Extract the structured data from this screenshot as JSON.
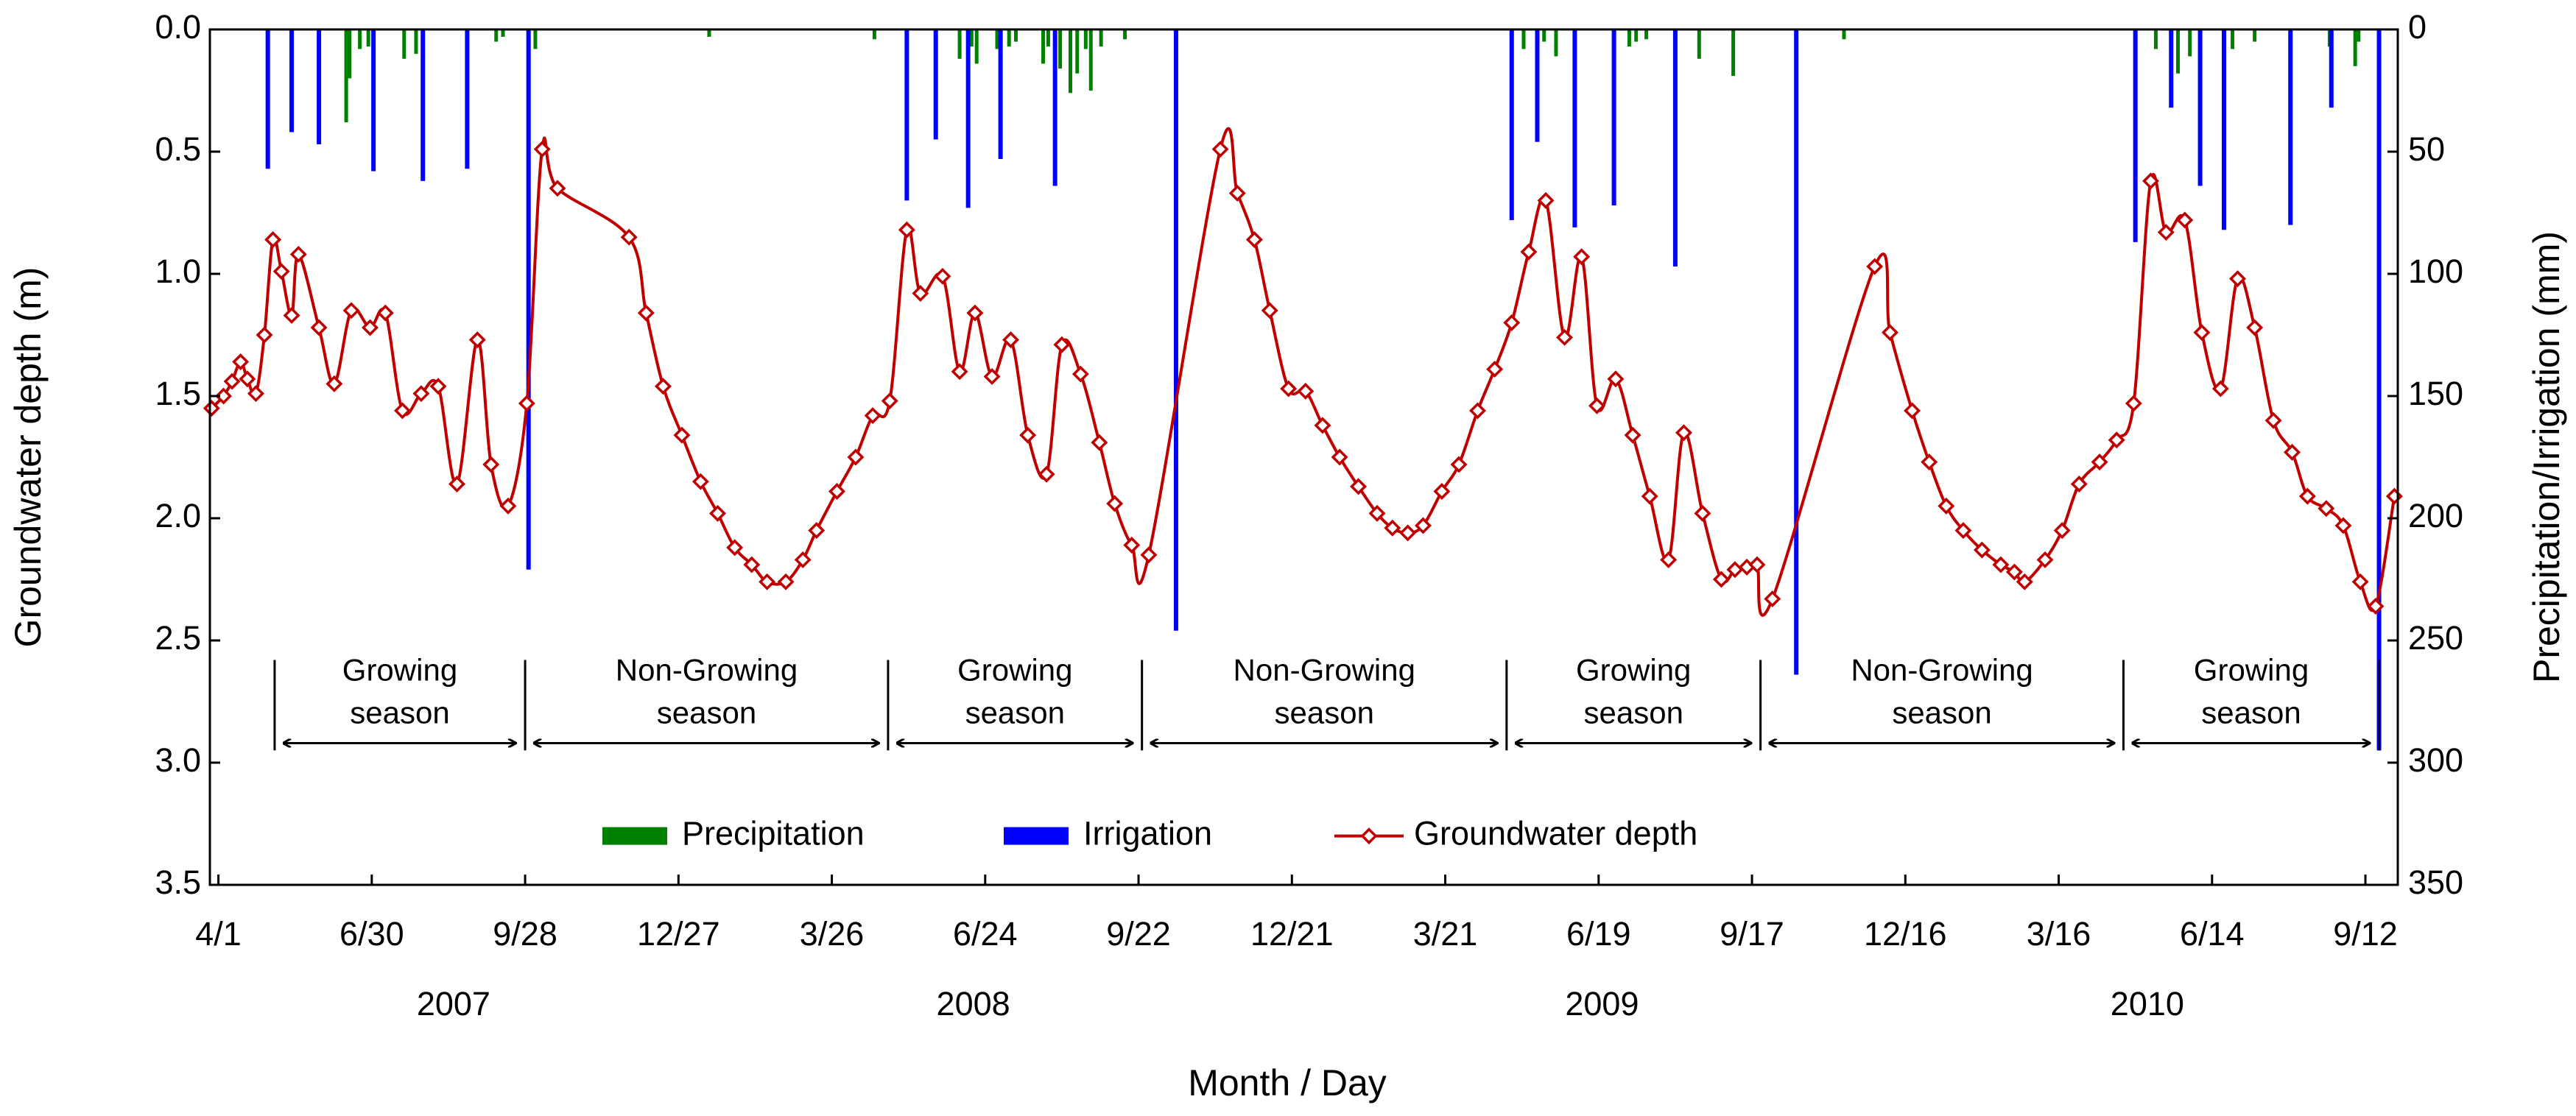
{
  "chart_data": {
    "type": "line",
    "xlabel": "Month  / Day",
    "ylabel": "Groundwater depth (m)",
    "y2label": "Precipitation/Irrigation (mm)",
    "xlim": [
      -5,
      1279
    ],
    "xticks": [
      {
        "value": 0,
        "label": "4/1"
      },
      {
        "value": 90,
        "label": "6/30"
      },
      {
        "value": 180,
        "label": "9/28"
      },
      {
        "value": 270,
        "label": "12/27"
      },
      {
        "value": 360,
        "label": "3/26"
      },
      {
        "value": 450,
        "label": "6/24"
      },
      {
        "value": 540,
        "label": "9/22"
      },
      {
        "value": 630,
        "label": "12/21"
      },
      {
        "value": 720,
        "label": "3/21"
      },
      {
        "value": 810,
        "label": "6/19"
      },
      {
        "value": 900,
        "label": "9/17"
      },
      {
        "value": 990,
        "label": "12/16"
      },
      {
        "value": 1080,
        "label": "3/16"
      },
      {
        "value": 1170,
        "label": "6/14"
      },
      {
        "value": 1260,
        "label": "9/12"
      }
    ],
    "year_labels": [
      {
        "text": "2007",
        "x": 138
      },
      {
        "text": "2008",
        "x": 443
      },
      {
        "text": "2009",
        "x": 812
      },
      {
        "text": "2010",
        "x": 1132
      }
    ],
    "ylim": [
      0,
      3.5
    ],
    "yticks": [
      {
        "value": 0,
        "label": "0.0"
      },
      0.5,
      {
        "value": 1,
        "label": "1.0"
      },
      1.5,
      {
        "value": 2,
        "label": "2.0"
      },
      2.5,
      {
        "value": 3,
        "label": "3.0"
      },
      3.5
    ],
    "y2lim": [
      0,
      350
    ],
    "y2ticks": [
      0,
      50,
      100,
      150,
      200,
      250,
      300,
      350
    ],
    "y_inverted": true,
    "legend": "lower center",
    "series": [
      {
        "name": "Precipitation",
        "type": "bar",
        "axis": "y2",
        "color": "#008000",
        "x": [
          75,
          77,
          83,
          88,
          109,
          116,
          163,
          167,
          186,
          288,
          385,
          435,
          442,
          445,
          457,
          464,
          468,
          484,
          487,
          494,
          500,
          504,
          509,
          512,
          518,
          532,
          766,
          778,
          785,
          828,
          832,
          838,
          869,
          889,
          954,
          1137,
          1150,
          1157,
          1182,
          1195,
          1239,
          1254,
          1256
        ],
        "values": [
          38,
          20,
          8,
          7,
          12,
          10,
          5,
          3,
          8,
          3,
          4,
          12,
          7,
          14,
          8,
          7,
          5,
          14,
          7,
          16,
          26,
          18,
          8,
          25,
          7,
          4,
          8,
          5,
          11,
          7,
          5,
          4,
          12,
          19,
          4,
          8,
          18,
          11,
          8,
          5,
          7,
          15,
          5
        ]
      },
      {
        "name": "Irrigation",
        "type": "bar",
        "axis": "y2",
        "color": "#0000ff",
        "x": [
          29,
          43,
          59,
          91,
          120,
          146,
          182,
          404,
          421,
          440,
          459,
          491,
          562,
          759,
          774,
          796,
          819,
          855,
          926,
          1125,
          1146,
          1163,
          1177,
          1216,
          1240,
          1268
        ],
        "values": [
          57,
          42,
          47,
          58,
          62,
          57,
          221,
          70,
          45,
          73,
          53,
          64,
          246,
          78,
          46,
          81,
          72,
          97,
          264,
          87,
          32,
          64,
          82,
          80,
          32,
          295
        ]
      },
      {
        "name": "Groundwater depth",
        "type": "line",
        "color": "#c00000",
        "x": [
          -4,
          3,
          8,
          13,
          17,
          22,
          27,
          32,
          37,
          43,
          47,
          59,
          68,
          78,
          89,
          98,
          108,
          119,
          129,
          140,
          152,
          160,
          170,
          181,
          190,
          199,
          241,
          251,
          261,
          272,
          283,
          293,
          303,
          313,
          322,
          333,
          343,
          351,
          363,
          374,
          384,
          394,
          404,
          412,
          425,
          435,
          444,
          454,
          465,
          475,
          486,
          495,
          506,
          517,
          526,
          536,
          546,
          588,
          598,
          608,
          617,
          628,
          638,
          648,
          658,
          669,
          680,
          689,
          698,
          707,
          718,
          728,
          739,
          749,
          759,
          769,
          779,
          790,
          800,
          809,
          820,
          830,
          840,
          851,
          860,
          871,
          882,
          890,
          897,
          903,
          912,
          972,
          981,
          994,
          1004,
          1014,
          1024,
          1035,
          1046,
          1054,
          1060,
          1072,
          1082,
          1092,
          1104,
          1114,
          1124,
          1134,
          1143,
          1154,
          1164,
          1175,
          1185,
          1195,
          1206,
          1217,
          1226,
          1237,
          1247,
          1257,
          1266,
          1277
        ],
        "values": [
          1.55,
          1.5,
          1.44,
          1.36,
          1.43,
          1.49,
          1.25,
          0.86,
          0.99,
          1.17,
          0.92,
          1.22,
          1.45,
          1.15,
          1.22,
          1.16,
          1.56,
          1.49,
          1.46,
          1.86,
          1.27,
          1.78,
          1.95,
          1.53,
          0.49,
          0.65,
          0.85,
          1.16,
          1.46,
          1.66,
          1.85,
          1.98,
          2.12,
          2.19,
          2.26,
          2.26,
          2.17,
          2.05,
          1.89,
          1.75,
          1.58,
          1.52,
          0.82,
          1.08,
          1.01,
          1.4,
          1.16,
          1.42,
          1.27,
          1.66,
          1.82,
          1.29,
          1.41,
          1.69,
          1.94,
          2.11,
          2.15,
          0.49,
          0.67,
          0.86,
          1.15,
          1.47,
          1.48,
          1.62,
          1.75,
          1.87,
          1.98,
          2.04,
          2.06,
          2.03,
          1.89,
          1.78,
          1.56,
          1.39,
          1.2,
          0.91,
          0.7,
          1.26,
          0.93,
          1.54,
          1.43,
          1.66,
          1.91,
          2.17,
          1.65,
          1.98,
          2.25,
          2.21,
          2.2,
          2.19,
          2.33,
          0.97,
          1.24,
          1.56,
          1.77,
          1.95,
          2.05,
          2.13,
          2.19,
          2.22,
          2.26,
          2.17,
          2.05,
          1.86,
          1.77,
          1.68,
          1.53,
          0.62,
          0.83,
          0.78,
          1.24,
          1.47,
          1.02,
          1.22,
          1.6,
          1.73,
          1.91,
          1.96,
          2.03,
          2.26,
          2.36,
          1.91
        ]
      }
    ],
    "season_boundaries": [
      33,
      180,
      393,
      542,
      756,
      905,
      1118,
      1268
    ],
    "seasons": [
      [
        "Growing",
        "season"
      ],
      [
        "Non-Growing",
        "season"
      ],
      [
        "Growing",
        "season"
      ],
      [
        "Non-Growing",
        "season"
      ],
      [
        "Growing",
        "season"
      ],
      [
        "Non-Growing",
        "season"
      ],
      [
        "Growing",
        "season"
      ]
    ]
  }
}
